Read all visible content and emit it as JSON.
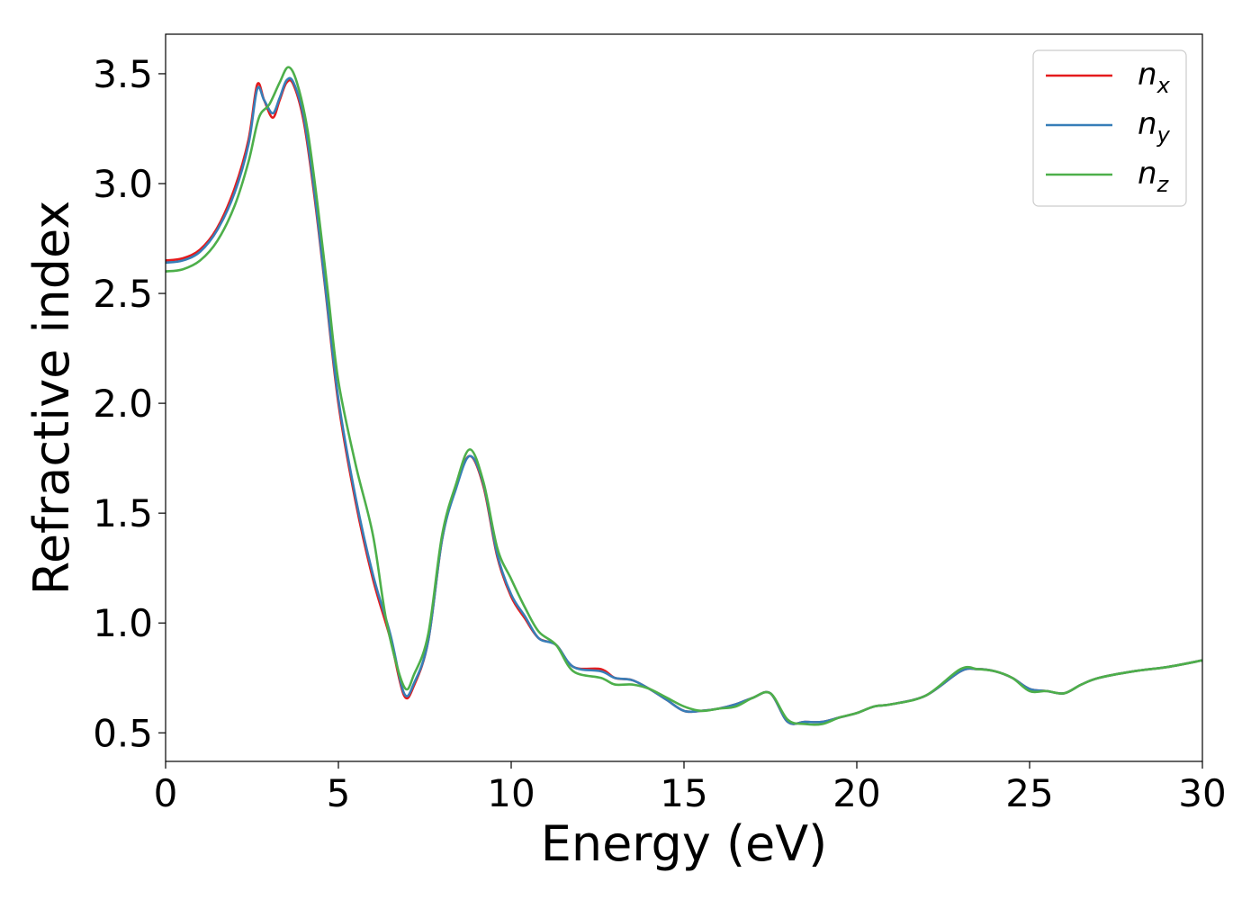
{
  "chart_data": {
    "type": "line",
    "xlabel": "Energy (eV)",
    "ylabel": "Refractive index",
    "xlim": [
      0,
      30
    ],
    "ylim": [
      0.37,
      3.68
    ],
    "xticks": [
      "0",
      "5",
      "10",
      "15",
      "20",
      "25",
      "30"
    ],
    "yticks": [
      "0.5",
      "1.0",
      "1.5",
      "2.0",
      "2.5",
      "3.0",
      "3.5"
    ],
    "grid": false,
    "legend_position": "top-right",
    "series": [
      {
        "name": "n_x",
        "legend_base": "n",
        "legend_sub": "x",
        "color": "#e41a1c",
        "points": [
          [
            0,
            2.65
          ],
          [
            0.5,
            2.66
          ],
          [
            1,
            2.7
          ],
          [
            1.5,
            2.8
          ],
          [
            2,
            2.98
          ],
          [
            2.4,
            3.2
          ],
          [
            2.65,
            3.45
          ],
          [
            2.85,
            3.38
          ],
          [
            3.1,
            3.3
          ],
          [
            3.3,
            3.38
          ],
          [
            3.5,
            3.46
          ],
          [
            3.7,
            3.45
          ],
          [
            4,
            3.28
          ],
          [
            4.3,
            2.95
          ],
          [
            4.6,
            2.55
          ],
          [
            5,
            2.0
          ],
          [
            5.5,
            1.55
          ],
          [
            6,
            1.2
          ],
          [
            6.5,
            0.93
          ],
          [
            6.9,
            0.67
          ],
          [
            7.2,
            0.72
          ],
          [
            7.6,
            0.92
          ],
          [
            8,
            1.38
          ],
          [
            8.4,
            1.62
          ],
          [
            8.8,
            1.76
          ],
          [
            9.2,
            1.62
          ],
          [
            9.6,
            1.3
          ],
          [
            10,
            1.12
          ],
          [
            10.4,
            1.02
          ],
          [
            10.8,
            0.93
          ],
          [
            11.3,
            0.9
          ],
          [
            11.8,
            0.8
          ],
          [
            12.6,
            0.79
          ],
          [
            13,
            0.75
          ],
          [
            13.5,
            0.74
          ],
          [
            14,
            0.7
          ],
          [
            14.5,
            0.65
          ],
          [
            15,
            0.6
          ],
          [
            15.5,
            0.6
          ],
          [
            16,
            0.61
          ],
          [
            16.5,
            0.63
          ],
          [
            17,
            0.66
          ],
          [
            17.5,
            0.68
          ],
          [
            18,
            0.55
          ],
          [
            18.5,
            0.55
          ],
          [
            19,
            0.55
          ],
          [
            19.5,
            0.57
          ],
          [
            20,
            0.59
          ],
          [
            20.5,
            0.62
          ],
          [
            21,
            0.63
          ],
          [
            22,
            0.67
          ],
          [
            23,
            0.78
          ],
          [
            23.5,
            0.79
          ],
          [
            24,
            0.78
          ],
          [
            24.5,
            0.75
          ],
          [
            25,
            0.7
          ],
          [
            25.5,
            0.69
          ],
          [
            26,
            0.68
          ],
          [
            26.5,
            0.72
          ],
          [
            27,
            0.75
          ],
          [
            28,
            0.78
          ],
          [
            29,
            0.8
          ],
          [
            30,
            0.83
          ]
        ]
      },
      {
        "name": "n_y",
        "legend_base": "n",
        "legend_sub": "y",
        "color": "#377eb8",
        "points": [
          [
            0,
            2.64
          ],
          [
            0.5,
            2.65
          ],
          [
            1,
            2.69
          ],
          [
            1.5,
            2.79
          ],
          [
            2,
            2.96
          ],
          [
            2.4,
            3.18
          ],
          [
            2.65,
            3.43
          ],
          [
            2.85,
            3.38
          ],
          [
            3.1,
            3.32
          ],
          [
            3.3,
            3.39
          ],
          [
            3.5,
            3.47
          ],
          [
            3.7,
            3.46
          ],
          [
            4,
            3.3
          ],
          [
            4.3,
            2.97
          ],
          [
            4.6,
            2.56
          ],
          [
            5,
            2.02
          ],
          [
            5.5,
            1.57
          ],
          [
            6,
            1.22
          ],
          [
            6.5,
            0.95
          ],
          [
            6.9,
            0.68
          ],
          [
            7.2,
            0.73
          ],
          [
            7.6,
            0.92
          ],
          [
            8,
            1.38
          ],
          [
            8.4,
            1.61
          ],
          [
            8.8,
            1.76
          ],
          [
            9.2,
            1.63
          ],
          [
            9.6,
            1.31
          ],
          [
            10,
            1.13
          ],
          [
            10.4,
            1.03
          ],
          [
            10.8,
            0.93
          ],
          [
            11.3,
            0.9
          ],
          [
            11.8,
            0.8
          ],
          [
            12.6,
            0.78
          ],
          [
            13,
            0.75
          ],
          [
            13.5,
            0.74
          ],
          [
            14,
            0.7
          ],
          [
            14.5,
            0.65
          ],
          [
            15,
            0.6
          ],
          [
            15.5,
            0.6
          ],
          [
            16,
            0.61
          ],
          [
            16.5,
            0.63
          ],
          [
            17,
            0.66
          ],
          [
            17.5,
            0.68
          ],
          [
            18,
            0.55
          ],
          [
            18.5,
            0.55
          ],
          [
            19,
            0.55
          ],
          [
            19.5,
            0.57
          ],
          [
            20,
            0.59
          ],
          [
            20.5,
            0.62
          ],
          [
            21,
            0.63
          ],
          [
            22,
            0.67
          ],
          [
            23,
            0.78
          ],
          [
            23.5,
            0.79
          ],
          [
            24,
            0.78
          ],
          [
            24.5,
            0.75
          ],
          [
            25,
            0.7
          ],
          [
            25.5,
            0.69
          ],
          [
            26,
            0.68
          ],
          [
            26.5,
            0.72
          ],
          [
            27,
            0.75
          ],
          [
            28,
            0.78
          ],
          [
            29,
            0.8
          ],
          [
            30,
            0.83
          ]
        ]
      },
      {
        "name": "n_z",
        "legend_base": "n",
        "legend_sub": "z",
        "color": "#4daf4a",
        "points": [
          [
            0,
            2.6
          ],
          [
            0.5,
            2.61
          ],
          [
            1,
            2.65
          ],
          [
            1.5,
            2.74
          ],
          [
            2,
            2.9
          ],
          [
            2.4,
            3.1
          ],
          [
            2.7,
            3.3
          ],
          [
            3,
            3.36
          ],
          [
            3.3,
            3.46
          ],
          [
            3.55,
            3.53
          ],
          [
            3.8,
            3.46
          ],
          [
            4.1,
            3.25
          ],
          [
            4.4,
            2.9
          ],
          [
            4.7,
            2.5
          ],
          [
            5,
            2.1
          ],
          [
            5.5,
            1.72
          ],
          [
            6,
            1.4
          ],
          [
            6.4,
            1.0
          ],
          [
            6.9,
            0.71
          ],
          [
            7.2,
            0.77
          ],
          [
            7.6,
            0.95
          ],
          [
            8,
            1.4
          ],
          [
            8.4,
            1.63
          ],
          [
            8.8,
            1.79
          ],
          [
            9.2,
            1.64
          ],
          [
            9.6,
            1.34
          ],
          [
            10,
            1.2
          ],
          [
            10.4,
            1.07
          ],
          [
            10.8,
            0.96
          ],
          [
            11.3,
            0.9
          ],
          [
            11.8,
            0.78
          ],
          [
            12.6,
            0.75
          ],
          [
            13,
            0.72
          ],
          [
            13.5,
            0.72
          ],
          [
            14,
            0.7
          ],
          [
            14.5,
            0.66
          ],
          [
            15,
            0.62
          ],
          [
            15.5,
            0.6
          ],
          [
            16,
            0.61
          ],
          [
            16.5,
            0.62
          ],
          [
            17,
            0.66
          ],
          [
            17.5,
            0.68
          ],
          [
            18,
            0.56
          ],
          [
            18.5,
            0.54
          ],
          [
            19,
            0.54
          ],
          [
            19.5,
            0.57
          ],
          [
            20,
            0.59
          ],
          [
            20.5,
            0.62
          ],
          [
            21,
            0.63
          ],
          [
            22,
            0.67
          ],
          [
            23,
            0.79
          ],
          [
            23.5,
            0.79
          ],
          [
            24,
            0.78
          ],
          [
            24.5,
            0.75
          ],
          [
            25,
            0.69
          ],
          [
            25.5,
            0.69
          ],
          [
            26,
            0.68
          ],
          [
            26.5,
            0.72
          ],
          [
            27,
            0.75
          ],
          [
            28,
            0.78
          ],
          [
            29,
            0.8
          ],
          [
            30,
            0.83
          ]
        ]
      }
    ]
  }
}
